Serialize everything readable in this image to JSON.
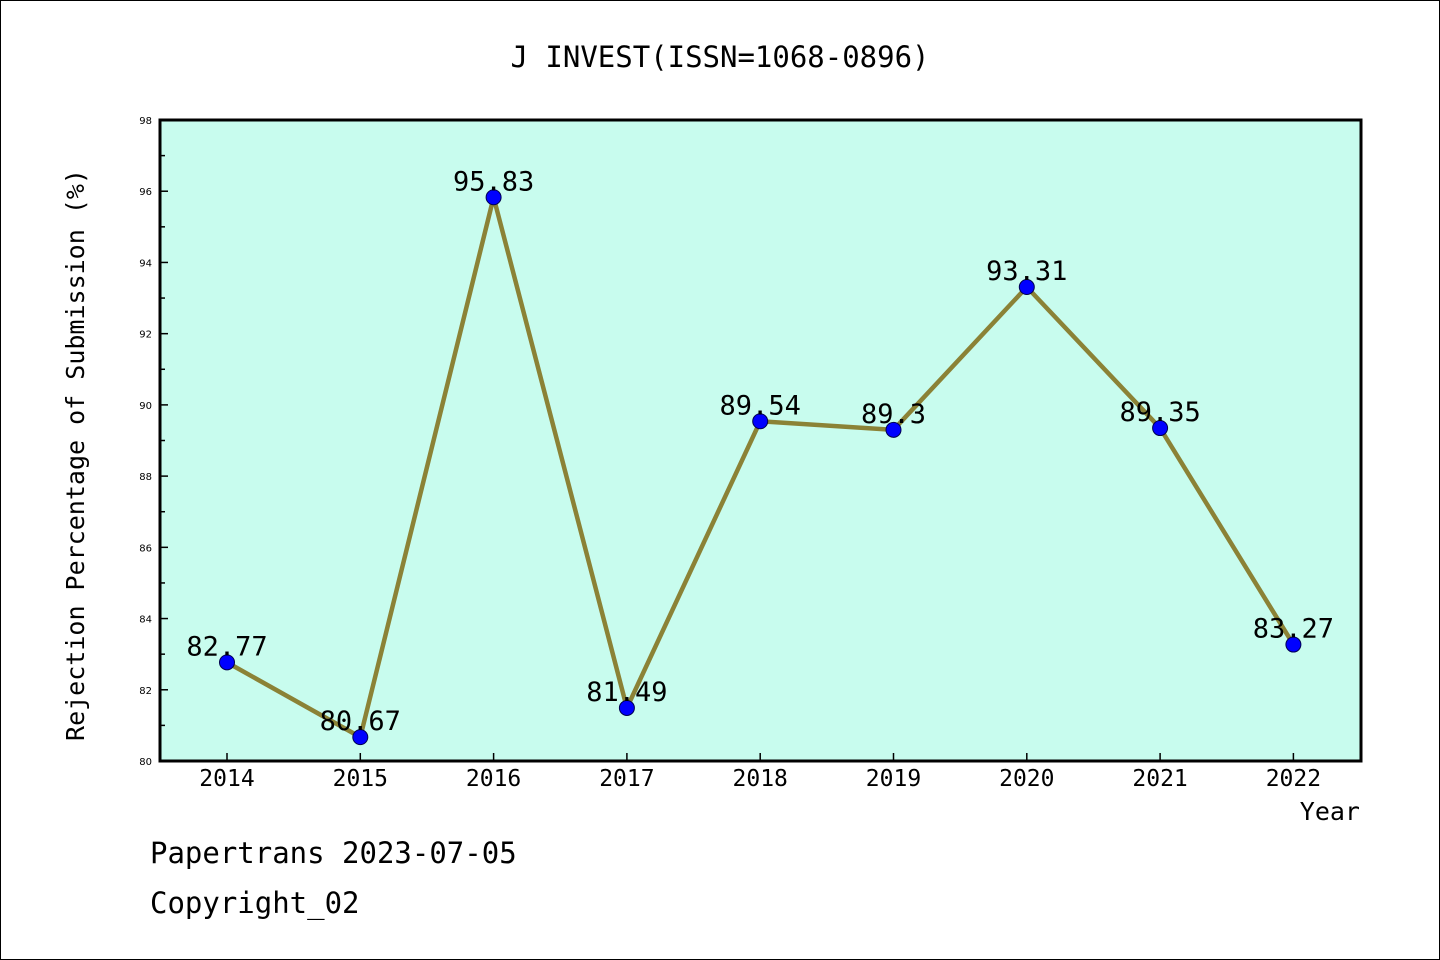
{
  "footer": {
    "line1": "Papertrans 2023-07-05",
    "line2": "Copyright_02"
  },
  "chart_data": {
    "type": "line",
    "title": "J INVEST(ISSN=1068-0896)",
    "xlabel": "Year",
    "ylabel": "Rejection Percentage of Submission (%)",
    "categories": [
      "2014",
      "2015",
      "2016",
      "2017",
      "2018",
      "2019",
      "2020",
      "2021",
      "2022"
    ],
    "values": [
      82.77,
      80.67,
      95.83,
      81.49,
      89.54,
      89.3,
      93.31,
      89.35,
      83.27
    ],
    "value_labels": [
      "82.77",
      "80.67",
      "95.83",
      "81.49",
      "89.54",
      "89.3",
      "93.31",
      "89.35",
      "83.27"
    ],
    "ylim": [
      80,
      98
    ],
    "yticks": [
      "80",
      "82",
      "84",
      "86",
      "88",
      "90",
      "92",
      "94",
      "96",
      "98"
    ],
    "grid": false,
    "legend": "none",
    "colors": {
      "plot_background": "#c8fcee",
      "line": "#8b8236",
      "marker": "#0000ff"
    }
  }
}
